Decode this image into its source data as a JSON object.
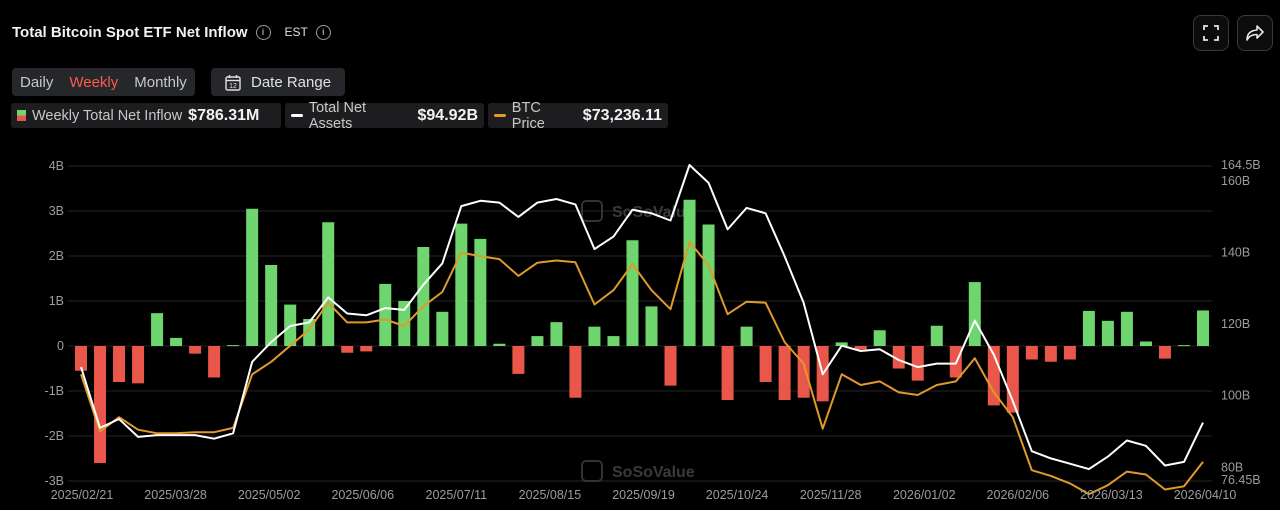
{
  "header": {
    "title": "Total Bitcoin Spot ETF Net Inflow",
    "timezone": "EST"
  },
  "periods": {
    "daily": "Daily",
    "weekly": "Weekly",
    "monthly": "Monthly",
    "active": "Weekly"
  },
  "date_range_label": "Date Range",
  "date_range_icon_text": "12",
  "legend": {
    "inflow_name": "Weekly Total Net Inflow",
    "inflow_value": "$786.31M",
    "assets_name": "Total Net Assets",
    "assets_value": "$94.92B",
    "btc_name": "BTC Price",
    "btc_value": "$73,236.11"
  },
  "watermark": "SoSoValue",
  "colors": {
    "positive": "#6fd66f",
    "negative": "#e8574a",
    "assets_line": "#ffffff",
    "btc_line": "#e09a2a",
    "background": "#000000"
  },
  "chart_data": {
    "type": "bar",
    "left_axis": {
      "ticks": [
        "4B",
        "3B",
        "2B",
        "1B",
        "0",
        "-1B",
        "-2B",
        "-3B"
      ],
      "ylim": [
        -3,
        4
      ],
      "unit": "B USD"
    },
    "right_axis": {
      "ticks": [
        "164.5B",
        "160B",
        "140B",
        "120B",
        "100B",
        "80B",
        "76.45B"
      ],
      "ylim": [
        76.45,
        164.5
      ]
    },
    "x_tick_labels": [
      "2025/02/21",
      "2025/03/28",
      "2025/05/02",
      "2025/06/06",
      "2025/07/11",
      "2025/08/15",
      "2025/09/19",
      "2025/10/24",
      "2025/11/28",
      "2026/01/02",
      "2026/02/06",
      "2026/03/13",
      "2026/04/10"
    ],
    "series": [
      {
        "name": "Weekly Total Net Inflow",
        "type": "bar",
        "values": [
          -0.55,
          -2.6,
          -0.8,
          -0.83,
          0.73,
          0.18,
          -0.17,
          -0.7,
          0.02,
          3.05,
          1.8,
          0.92,
          0.6,
          2.75,
          -0.15,
          -0.12,
          1.38,
          1.0,
          2.2,
          0.76,
          2.72,
          2.38,
          0.05,
          -0.62,
          0.22,
          0.53,
          -1.15,
          0.43,
          0.22,
          2.35,
          0.88,
          -0.88,
          3.25,
          2.7,
          -1.2,
          0.43,
          -0.8,
          -1.2,
          -1.15,
          -1.23,
          0.08,
          -0.08,
          0.35,
          -0.5,
          -0.77,
          0.45,
          -0.7,
          1.42,
          -1.32,
          -1.48,
          -0.3,
          -0.35,
          -0.3,
          0.78,
          0.56,
          0.76,
          0.1,
          -0.28,
          0.02,
          0.79
        ]
      },
      {
        "name": "Total Net Assets",
        "type": "line",
        "values": [
          108,
          91,
          93.5,
          88.5,
          89,
          89,
          89,
          88,
          89.5,
          109.5,
          115,
          119.5,
          120.5,
          127.5,
          123,
          122.5,
          124.5,
          124,
          131,
          137,
          153,
          154.5,
          154,
          150,
          154,
          155,
          153.5,
          141,
          144.5,
          152,
          151,
          149,
          164.5,
          159.5,
          146.5,
          152.5,
          151,
          139,
          126,
          106,
          114,
          112.5,
          113,
          110,
          108,
          109,
          109,
          121,
          111.5,
          98.5,
          84.5,
          82.5,
          81,
          79.5,
          83,
          87.5,
          86,
          80.5,
          81.5,
          92.5
        ]
      },
      {
        "name": "BTC Price",
        "type": "line",
        "values": [
          106,
          90,
          94,
          90.5,
          89.5,
          89.5,
          89.8,
          89.8,
          91,
          106,
          109.5,
          114,
          118.5,
          126,
          120.5,
          120.5,
          121.3,
          119.5,
          125,
          129,
          140,
          139,
          138.2,
          133.5,
          137.2,
          137.8,
          137.3,
          125.5,
          129.5,
          136.8,
          129.5,
          124.2,
          143,
          136.5,
          122.8,
          126.3,
          126,
          115,
          109,
          90.8,
          106,
          103,
          104,
          101,
          100.2,
          103,
          104,
          110.5,
          101,
          94,
          79.2,
          77.6,
          75.5,
          72.5,
          75,
          78.8,
          78,
          73.8,
          74.7,
          81.5
        ]
      }
    ]
  }
}
